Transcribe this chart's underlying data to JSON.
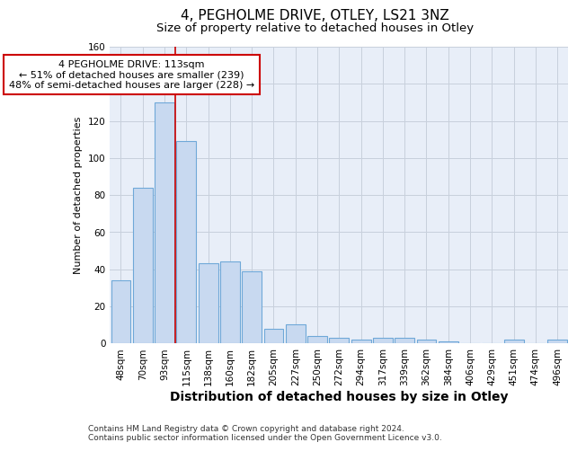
{
  "title": "4, PEGHOLME DRIVE, OTLEY, LS21 3NZ",
  "subtitle": "Size of property relative to detached houses in Otley",
  "xlabel": "Distribution of detached houses by size in Otley",
  "ylabel": "Number of detached properties",
  "categories": [
    "48sqm",
    "70sqm",
    "93sqm",
    "115sqm",
    "138sqm",
    "160sqm",
    "182sqm",
    "205sqm",
    "227sqm",
    "250sqm",
    "272sqm",
    "294sqm",
    "317sqm",
    "339sqm",
    "362sqm",
    "384sqm",
    "406sqm",
    "429sqm",
    "451sqm",
    "474sqm",
    "496sqm"
  ],
  "values": [
    34,
    84,
    130,
    109,
    43,
    44,
    39,
    8,
    10,
    4,
    3,
    2,
    3,
    3,
    2,
    1,
    0,
    0,
    2,
    0,
    2
  ],
  "bar_color": "#c8d9f0",
  "bar_edge_color": "#6fa8d8",
  "vline_pos": 3,
  "vline_color": "#cc0000",
  "marker_label": "4 PEGHOLME DRIVE: 113sqm",
  "smaller_pct": "← 51% of detached houses are smaller (239)",
  "larger_pct": "48% of semi-detached houses are larger (228) →",
  "annotation_box_bg": "#ffffff",
  "annotation_box_edge": "#cc0000",
  "ylim": [
    0,
    160
  ],
  "yticks": [
    0,
    20,
    40,
    60,
    80,
    100,
    120,
    140,
    160
  ],
  "grid_color": "#c8d0dc",
  "bg_color": "#e8eef8",
  "footnote": "Contains HM Land Registry data © Crown copyright and database right 2024.\nContains public sector information licensed under the Open Government Licence v3.0.",
  "title_fontsize": 11,
  "subtitle_fontsize": 9.5,
  "xlabel_fontsize": 10,
  "ylabel_fontsize": 8,
  "tick_fontsize": 7.5,
  "annot_fontsize": 8,
  "footnote_fontsize": 6.5
}
